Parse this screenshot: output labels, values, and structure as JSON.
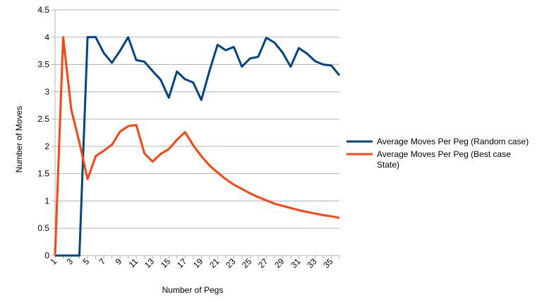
{
  "chart_data": {
    "type": "line",
    "xlabel": "Number of Pegs",
    "ylabel": "Number of Moves",
    "ylim": [
      0,
      4.5
    ],
    "yticks": [
      "0",
      "0.5",
      "1",
      "1.5",
      "2",
      "2.5",
      "3",
      "3.5",
      "4",
      "4.5"
    ],
    "x": [
      1,
      2,
      3,
      4,
      5,
      6,
      7,
      8,
      9,
      10,
      11,
      12,
      13,
      14,
      15,
      16,
      17,
      18,
      19,
      20,
      21,
      22,
      23,
      24,
      25,
      26,
      27,
      28,
      29,
      30,
      31,
      32,
      33,
      34,
      35,
      36
    ],
    "xtick_labels": [
      "1",
      "3",
      "5",
      "7",
      "9",
      "11",
      "13",
      "15",
      "17",
      "19",
      "21",
      "23",
      "25",
      "27",
      "29",
      "31",
      "33",
      "35"
    ],
    "grid": "horizontal",
    "legend_position": "right",
    "series": [
      {
        "name": "Average Moves Per Peg (Random case)",
        "color": "#004586",
        "values": [
          0,
          0,
          0,
          0,
          4,
          4,
          3.71,
          3.53,
          3.75,
          4,
          3.58,
          3.55,
          3.38,
          3.22,
          2.89,
          3.37,
          3.23,
          3.17,
          2.85,
          3.38,
          3.86,
          3.76,
          3.82,
          3.46,
          3.61,
          3.64,
          3.99,
          3.9,
          3.72,
          3.46,
          3.8,
          3.7,
          3.56,
          3.5,
          3.48,
          3.3
        ]
      },
      {
        "name": "Average Moves Per Peg (Best case State)",
        "color": "#ff420e",
        "values": [
          0,
          4,
          2.67,
          2.07,
          1.4,
          1.82,
          1.92,
          2.03,
          2.27,
          2.37,
          2.39,
          1.87,
          1.72,
          1.86,
          1.95,
          2.12,
          2.26,
          2.02,
          1.82,
          1.65,
          1.52,
          1.4,
          1.3,
          1.22,
          1.14,
          1.07,
          1.01,
          0.95,
          0.91,
          0.87,
          0.83,
          0.8,
          0.77,
          0.74,
          0.72,
          0.69
        ]
      }
    ]
  }
}
